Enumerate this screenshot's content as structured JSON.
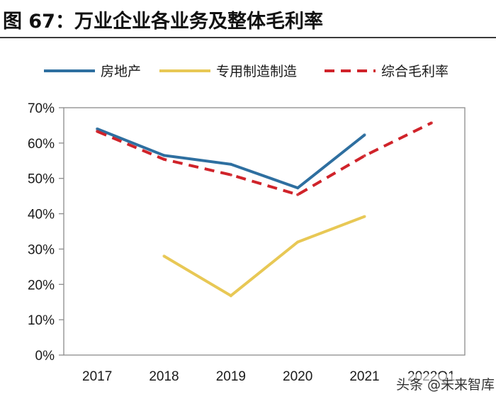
{
  "figure": {
    "title": "图 67：万业企业各业务及整体毛利率"
  },
  "chart_data": {
    "type": "line",
    "title": "图 67：万业企业各业务及整体毛利率",
    "categories": [
      "2017",
      "2018",
      "2019",
      "2020",
      "2021",
      "2022Q1"
    ],
    "yticks": [
      "0%",
      "10%",
      "20%",
      "30%",
      "40%",
      "50%",
      "60%",
      "70%"
    ],
    "ylim": [
      0,
      70
    ],
    "xlabel": "",
    "ylabel": "",
    "legend_position": "top",
    "series": [
      {
        "name": "房地产",
        "color": "#2e6fa0",
        "dash": "solid",
        "values": [
          64,
          56.5,
          54,
          47.3,
          62.3,
          null
        ]
      },
      {
        "name": "专用制造制造",
        "color": "#e8c855",
        "dash": "solid",
        "values": [
          null,
          28,
          16.8,
          32,
          39.2,
          null
        ]
      },
      {
        "name": "综合毛利率",
        "color": "#d0232a",
        "dash": "dashed",
        "values": [
          63.3,
          55.4,
          51,
          45.4,
          56.4,
          65.7
        ]
      }
    ]
  },
  "watermark": {
    "text": "头条 @未来智库"
  }
}
